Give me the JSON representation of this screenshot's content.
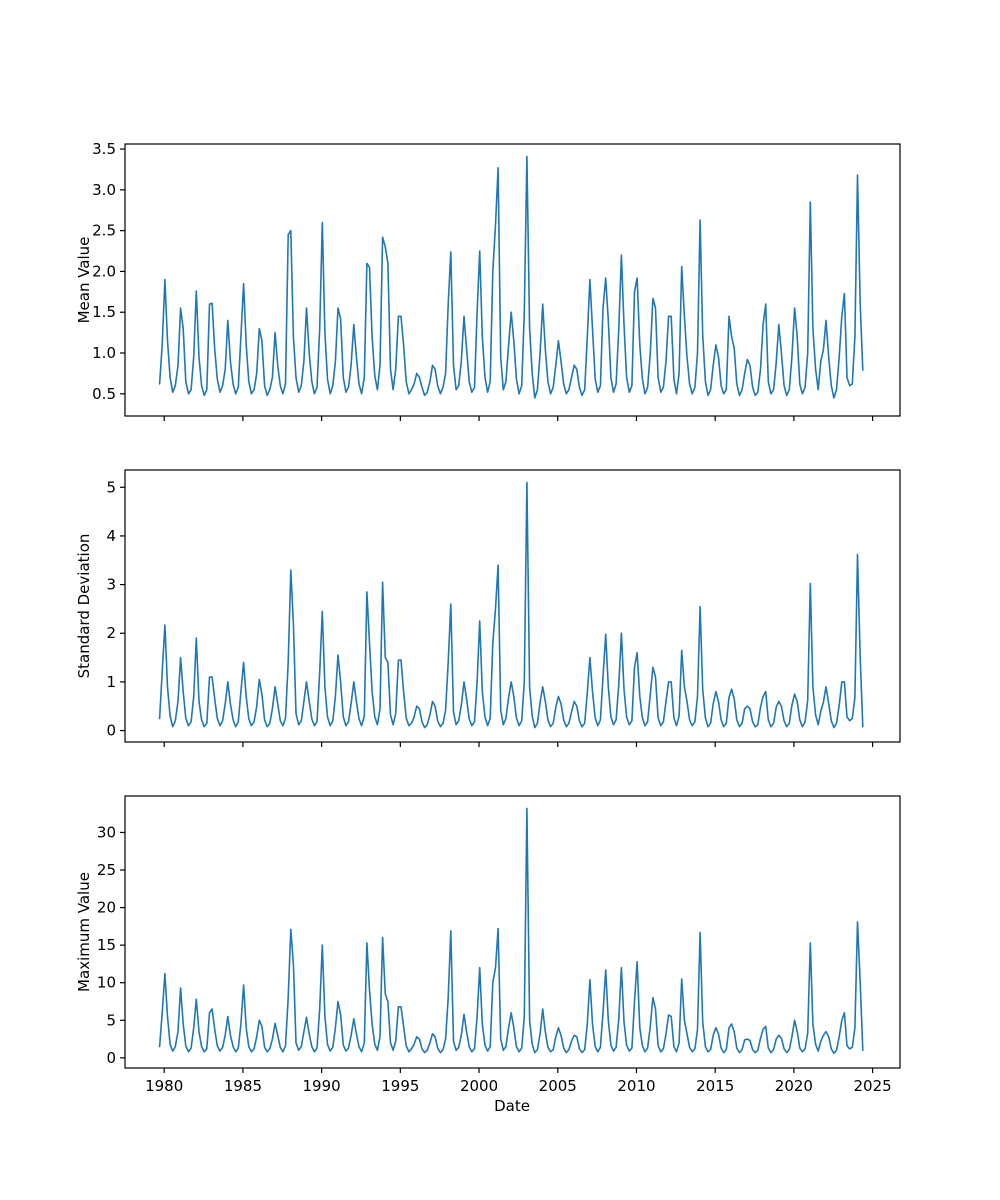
{
  "figure": {
    "background": "#ffffff",
    "line_color": "#1f77b4"
  },
  "chart_data": [
    {
      "type": "line",
      "ylabel": "Mean Value",
      "color": "#1f77b4",
      "x_start": 1979.7083,
      "x_step": 0.16667,
      "xlim": [
        1977.51,
        2026.74
      ],
      "ylim": [
        0.228,
        3.562
      ],
      "yticks": [
        0.5,
        1.0,
        1.5,
        2.0,
        2.5,
        3.0,
        3.5
      ],
      "ytick_labels": [
        "0.5",
        "1.0",
        "1.5",
        "2.0",
        "2.5",
        "3.0",
        "3.5"
      ],
      "xticks": [
        1980,
        1985,
        1990,
        1995,
        2000,
        2005,
        2010,
        2015,
        2020,
        2025
      ],
      "grid": false,
      "legend": null,
      "values": [
        0.62,
        1.1,
        1.9,
        1.15,
        0.7,
        0.52,
        0.6,
        0.85,
        1.55,
        1.3,
        0.65,
        0.5,
        0.55,
        0.95,
        1.76,
        0.95,
        0.6,
        0.48,
        0.55,
        1.6,
        1.61,
        1.05,
        0.68,
        0.52,
        0.6,
        0.8,
        1.4,
        0.9,
        0.62,
        0.5,
        0.58,
        1.2,
        1.85,
        1.1,
        0.65,
        0.5,
        0.55,
        0.75,
        1.3,
        1.15,
        0.6,
        0.48,
        0.55,
        0.7,
        1.25,
        0.85,
        0.6,
        0.5,
        0.62,
        2.45,
        2.5,
        1.2,
        0.7,
        0.52,
        0.6,
        0.9,
        1.55,
        1.0,
        0.65,
        0.5,
        0.58,
        1.3,
        2.6,
        1.25,
        0.68,
        0.5,
        0.6,
        0.9,
        1.55,
        1.42,
        0.7,
        0.52,
        0.58,
        0.85,
        1.35,
        0.95,
        0.62,
        0.5,
        0.7,
        2.1,
        2.05,
        1.2,
        0.72,
        0.55,
        0.85,
        2.42,
        2.3,
        2.1,
        0.8,
        0.55,
        0.8,
        1.45,
        1.45,
        1.1,
        0.65,
        0.5,
        0.55,
        0.62,
        0.75,
        0.7,
        0.58,
        0.48,
        0.52,
        0.65,
        0.85,
        0.8,
        0.6,
        0.5,
        0.58,
        0.75,
        1.6,
        2.24,
        0.85,
        0.55,
        0.6,
        0.9,
        1.45,
        1.05,
        0.65,
        0.52,
        0.58,
        1.5,
        2.25,
        1.2,
        0.7,
        0.52,
        0.65,
        2.0,
        2.57,
        3.27,
        0.95,
        0.55,
        0.65,
        1.1,
        1.5,
        1.15,
        0.68,
        0.5,
        0.6,
        1.5,
        3.41,
        1.3,
        0.75,
        0.45,
        0.55,
        1.0,
        1.6,
        1.05,
        0.65,
        0.5,
        0.58,
        0.85,
        1.15,
        0.9,
        0.62,
        0.5,
        0.55,
        0.7,
        0.85,
        0.8,
        0.58,
        0.48,
        0.55,
        1.2,
        1.9,
        1.3,
        0.68,
        0.52,
        0.6,
        1.55,
        1.92,
        1.4,
        0.7,
        0.52,
        0.62,
        1.3,
        2.2,
        1.35,
        0.7,
        0.52,
        0.6,
        1.75,
        1.92,
        1.1,
        0.68,
        0.5,
        0.58,
        1.0,
        1.67,
        1.55,
        0.7,
        0.52,
        0.58,
        0.9,
        1.45,
        1.45,
        0.68,
        0.5,
        0.75,
        2.06,
        1.45,
        0.95,
        0.62,
        0.5,
        0.58,
        1.0,
        2.63,
        1.22,
        0.65,
        0.48,
        0.55,
        0.85,
        1.1,
        0.95,
        0.6,
        0.5,
        0.55,
        1.45,
        1.2,
        1.06,
        0.62,
        0.48,
        0.55,
        0.75,
        0.92,
        0.85,
        0.58,
        0.48,
        0.52,
        0.8,
        1.35,
        1.6,
        0.65,
        0.5,
        0.55,
        0.88,
        1.35,
        1.0,
        0.6,
        0.48,
        0.55,
        0.95,
        1.55,
        1.2,
        0.62,
        0.5,
        0.58,
        1.0,
        2.85,
        1.3,
        0.8,
        0.55,
        0.9,
        1.04,
        1.4,
        0.95,
        0.6,
        0.45,
        0.55,
        0.95,
        1.45,
        1.73,
        0.7,
        0.6,
        0.62,
        1.2,
        3.18,
        1.6,
        0.79
      ]
    },
    {
      "type": "line",
      "ylabel": "Standard Deviation",
      "color": "#1f77b4",
      "x_start": 1979.7083,
      "x_step": 0.16667,
      "xlim": [
        1977.51,
        2026.74
      ],
      "ylim": [
        -0.235,
        5.355
      ],
      "yticks": [
        0,
        1,
        2,
        3,
        4,
        5
      ],
      "ytick_labels": [
        "0",
        "1",
        "2",
        "3",
        "4",
        "5"
      ],
      "xticks": [
        1980,
        1985,
        1990,
        1995,
        2000,
        2005,
        2010,
        2015,
        2020,
        2025
      ],
      "grid": false,
      "legend": null,
      "values": [
        0.25,
        1.2,
        2.17,
        0.9,
        0.3,
        0.08,
        0.2,
        0.6,
        1.5,
        0.8,
        0.25,
        0.1,
        0.18,
        0.7,
        1.9,
        0.6,
        0.22,
        0.08,
        0.15,
        1.1,
        1.1,
        0.65,
        0.25,
        0.1,
        0.2,
        0.55,
        1.0,
        0.55,
        0.22,
        0.08,
        0.18,
        0.8,
        1.4,
        0.7,
        0.24,
        0.1,
        0.18,
        0.5,
        1.05,
        0.75,
        0.22,
        0.08,
        0.15,
        0.45,
        0.9,
        0.55,
        0.2,
        0.1,
        0.25,
        1.4,
        3.3,
        2.2,
        0.35,
        0.12,
        0.2,
        0.6,
        1.0,
        0.6,
        0.24,
        0.1,
        0.18,
        1.2,
        2.45,
        0.9,
        0.28,
        0.1,
        0.2,
        0.7,
        1.55,
        1.0,
        0.28,
        0.1,
        0.18,
        0.55,
        1.0,
        0.6,
        0.24,
        0.1,
        0.3,
        2.85,
        1.8,
        0.8,
        0.28,
        0.12,
        0.45,
        3.05,
        1.5,
        1.4,
        0.32,
        0.12,
        0.35,
        1.45,
        1.45,
        0.8,
        0.26,
        0.1,
        0.15,
        0.28,
        0.5,
        0.45,
        0.18,
        0.06,
        0.12,
        0.32,
        0.6,
        0.5,
        0.2,
        0.08,
        0.15,
        0.42,
        1.4,
        2.6,
        0.38,
        0.12,
        0.2,
        0.52,
        1.0,
        0.65,
        0.24,
        0.1,
        0.18,
        1.0,
        2.25,
        0.8,
        0.28,
        0.1,
        0.25,
        1.8,
        2.5,
        3.4,
        0.42,
        0.12,
        0.25,
        0.68,
        1.0,
        0.7,
        0.26,
        0.1,
        0.2,
        1.0,
        5.1,
        0.9,
        0.3,
        0.06,
        0.15,
        0.58,
        0.9,
        0.6,
        0.22,
        0.08,
        0.15,
        0.48,
        0.7,
        0.55,
        0.22,
        0.08,
        0.15,
        0.38,
        0.6,
        0.5,
        0.2,
        0.08,
        0.15,
        0.78,
        1.5,
        0.8,
        0.26,
        0.1,
        0.22,
        1.1,
        1.98,
        0.9,
        0.28,
        0.12,
        0.22,
        0.95,
        2.0,
        0.85,
        0.28,
        0.12,
        0.2,
        1.3,
        1.6,
        0.7,
        0.26,
        0.1,
        0.18,
        0.75,
        1.3,
        1.1,
        0.26,
        0.1,
        0.18,
        0.6,
        1.0,
        1.0,
        0.26,
        0.1,
        0.3,
        1.65,
        0.9,
        0.6,
        0.22,
        0.1,
        0.18,
        0.7,
        2.55,
        0.85,
        0.26,
        0.08,
        0.15,
        0.55,
        0.8,
        0.6,
        0.22,
        0.08,
        0.15,
        0.68,
        0.85,
        0.65,
        0.22,
        0.08,
        0.15,
        0.45,
        0.5,
        0.45,
        0.18,
        0.08,
        0.12,
        0.48,
        0.7,
        0.8,
        0.22,
        0.08,
        0.15,
        0.48,
        0.6,
        0.5,
        0.2,
        0.08,
        0.15,
        0.52,
        0.75,
        0.6,
        0.22,
        0.08,
        0.18,
        0.62,
        3.02,
        0.9,
        0.32,
        0.12,
        0.4,
        0.58,
        0.9,
        0.55,
        0.2,
        0.06,
        0.15,
        0.52,
        1.0,
        1.0,
        0.28,
        0.2,
        0.25,
        0.68,
        3.62,
        1.5,
        0.08
      ]
    },
    {
      "type": "line",
      "ylabel": "Maximum Value",
      "xlabel": "Date",
      "color": "#1f77b4",
      "x_start": 1979.7083,
      "x_step": 0.16667,
      "xlim": [
        1977.51,
        2026.74
      ],
      "ylim": [
        -1.35,
        34.85
      ],
      "yticks": [
        0,
        5,
        10,
        15,
        20,
        25,
        30
      ],
      "ytick_labels": [
        "0",
        "5",
        "10",
        "15",
        "20",
        "25",
        "30"
      ],
      "xticks": [
        1980,
        1985,
        1990,
        1995,
        2000,
        2005,
        2010,
        2015,
        2020,
        2025
      ],
      "xtick_labels": [
        "1980",
        "1985",
        "1990",
        "1995",
        "2000",
        "2005",
        "2010",
        "2015",
        "2020",
        "2025"
      ],
      "grid": false,
      "legend": null,
      "values": [
        1.5,
        6.0,
        11.2,
        5.5,
        1.8,
        0.9,
        1.5,
        3.5,
        9.3,
        4.5,
        1.6,
        0.8,
        1.3,
        4.0,
        7.8,
        3.5,
        1.5,
        0.8,
        1.2,
        6.0,
        6.5,
        3.8,
        1.6,
        0.9,
        1.4,
        3.0,
        5.5,
        3.0,
        1.5,
        0.8,
        1.3,
        4.5,
        9.7,
        4.0,
        1.5,
        0.8,
        1.2,
        2.8,
        5.0,
        4.2,
        1.4,
        0.8,
        1.2,
        2.5,
        4.6,
        3.0,
        1.4,
        0.8,
        1.6,
        8.0,
        17.1,
        12.5,
        2.0,
        1.0,
        1.5,
        3.5,
        5.4,
        3.2,
        1.5,
        0.8,
        1.3,
        6.5,
        15.0,
        5.5,
        1.8,
        0.9,
        1.4,
        4.0,
        7.5,
        5.8,
        1.7,
        0.9,
        1.3,
        3.0,
        5.2,
        3.2,
        1.5,
        0.8,
        2.0,
        15.3,
        9.0,
        4.5,
        1.8,
        1.0,
        2.8,
        16.0,
        8.5,
        7.5,
        2.0,
        1.0,
        2.2,
        6.8,
        6.8,
        4.2,
        1.6,
        0.8,
        1.2,
        1.8,
        2.8,
        2.5,
        1.2,
        0.7,
        1.0,
        2.0,
        3.2,
        2.8,
        1.3,
        0.7,
        1.1,
        2.5,
        8.0,
        16.9,
        2.2,
        1.0,
        1.4,
        3.0,
        5.8,
        3.5,
        1.5,
        0.8,
        1.2,
        5.5,
        12.0,
        4.5,
        1.7,
        0.9,
        1.5,
        10.0,
        12.0,
        17.2,
        2.5,
        1.0,
        1.5,
        4.0,
        6.0,
        4.0,
        1.5,
        0.8,
        1.3,
        5.5,
        33.2,
        5.0,
        1.8,
        0.7,
        1.1,
        3.2,
        6.5,
        3.5,
        1.4,
        0.8,
        1.1,
        2.8,
        4.0,
        3.0,
        1.3,
        0.7,
        1.1,
        2.2,
        3.0,
        2.8,
        1.2,
        0.7,
        1.1,
        4.5,
        10.4,
        4.5,
        1.5,
        0.8,
        1.4,
        6.0,
        11.7,
        5.0,
        1.7,
        0.9,
        1.4,
        5.2,
        12.0,
        4.8,
        1.7,
        0.9,
        1.3,
        7.5,
        12.8,
        4.0,
        1.6,
        0.8,
        1.3,
        4.2,
        8.0,
        6.5,
        1.6,
        0.8,
        1.2,
        3.2,
        5.7,
        5.5,
        1.5,
        0.8,
        2.0,
        10.5,
        5.0,
        3.2,
        1.4,
        0.8,
        1.2,
        3.8,
        16.7,
        4.8,
        1.5,
        0.8,
        1.1,
        3.0,
        4.0,
        3.2,
        1.3,
        0.7,
        1.1,
        4.0,
        4.5,
        3.5,
        1.3,
        0.7,
        1.1,
        2.4,
        2.5,
        2.3,
        1.1,
        0.7,
        1.0,
        2.6,
        3.8,
        4.2,
        1.3,
        0.7,
        1.1,
        2.5,
        3.0,
        2.6,
        1.2,
        0.7,
        1.1,
        2.8,
        5.0,
        3.5,
        1.3,
        0.8,
        1.2,
        3.3,
        15.3,
        4.5,
        1.8,
        0.9,
        2.2,
        3.0,
        3.5,
        2.8,
        1.2,
        0.6,
        1.0,
        2.8,
        5.0,
        6.0,
        1.6,
        1.2,
        1.4,
        4.0,
        18.1,
        10.0,
        1.0
      ]
    }
  ]
}
